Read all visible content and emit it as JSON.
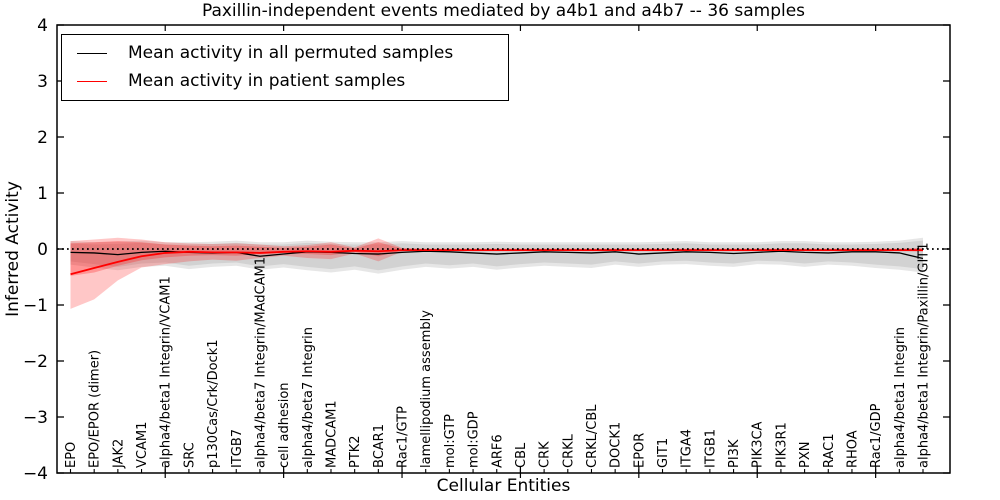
{
  "figure": {
    "title": "Paxillin-independent events mediated by a4b1 and a4b7 -- 36 samples",
    "xlabel": "Cellular Entities",
    "ylabel": "Inferred Activity"
  },
  "legend": {
    "position": "upper left",
    "entries": [
      {
        "label": "Mean activity in all permuted samples",
        "color": "#000000"
      },
      {
        "label": "Mean activity in patient samples",
        "color": "#ff0000"
      }
    ]
  },
  "chart_data": {
    "type": "line",
    "title": "Paxillin-independent events mediated by a4b1 and a4b7 -- 36 samples",
    "xlabel": "Cellular Entities",
    "ylabel": "Inferred Activity",
    "ylim": [
      -4,
      4
    ],
    "ytick_labels": [
      "4",
      "3",
      "2",
      "1",
      "0",
      "−1",
      "−2",
      "−3",
      "−4"
    ],
    "yticks": [
      4,
      3,
      2,
      1,
      0,
      -1,
      -2,
      -3,
      -4
    ],
    "grid": false,
    "legend_position": "upper left",
    "zero_line": {
      "style": "dotted",
      "color": "#000000",
      "y": 0
    },
    "categories": [
      "EPO",
      "EPO/EPOR (dimer)",
      "JAK2",
      "VCAM1",
      "alpha4/beta1 Integrin/VCAM1",
      "SRC",
      "p130Cas/Crk/Dock1",
      "ITGB7",
      "alpha4/beta7 Integrin/MAdCAM1",
      "cell adhesion",
      "alpha4/beta7 Integrin",
      "MADCAM1",
      "PTK2",
      "BCAR1",
      "Rac1/GTP",
      "lamellipodium assembly",
      "mol:GTP",
      "mol:GDP",
      "ARF6",
      "CBL",
      "CRK",
      "CRKL",
      "CRKL/CBL",
      "DOCK1",
      "EPOR",
      "GIT1",
      "ITGA4",
      "ITGB1",
      "PI3K",
      "PIK3CA",
      "PIK3R1",
      "PXN",
      "RAC1",
      "RHOA",
      "Rac1/GDP",
      "alpha4/beta1 Integrin",
      "alpha4/beta1 Integrin/Paxillin/GIT1"
    ],
    "series": [
      {
        "name": "Mean activity in all permuted samples",
        "color": "#000000",
        "values": [
          -0.06,
          -0.07,
          -0.1,
          -0.06,
          -0.04,
          -0.06,
          -0.07,
          -0.06,
          -0.13,
          -0.09,
          -0.05,
          -0.06,
          -0.08,
          -0.09,
          -0.06,
          -0.04,
          -0.05,
          -0.07,
          -0.09,
          -0.07,
          -0.05,
          -0.06,
          -0.07,
          -0.05,
          -0.09,
          -0.07,
          -0.05,
          -0.06,
          -0.08,
          -0.06,
          -0.04,
          -0.06,
          -0.07,
          -0.05,
          -0.05,
          -0.07,
          -0.17
        ]
      },
      {
        "name": "Mean activity in patient samples",
        "color": "#ff0000",
        "values": [
          -0.45,
          -0.34,
          -0.23,
          -0.13,
          -0.07,
          -0.05,
          -0.06,
          -0.06,
          -0.07,
          -0.05,
          -0.04,
          -0.05,
          -0.03,
          -0.04,
          -0.02,
          -0.02,
          -0.02,
          -0.02,
          -0.02,
          -0.02,
          -0.02,
          -0.02,
          -0.02,
          -0.02,
          -0.02,
          -0.02,
          -0.02,
          -0.02,
          -0.02,
          -0.02,
          -0.02,
          -0.02,
          -0.02,
          -0.02,
          -0.02,
          -0.02,
          -0.02
        ]
      }
    ],
    "bands": [
      {
        "name": "permuted-range",
        "color": "#8c8c8c",
        "opacity": 0.22,
        "hi": [
          0.14,
          0.12,
          0.13,
          0.15,
          0.12,
          0.12,
          0.13,
          0.15,
          0.12,
          0.12,
          0.15,
          0.13,
          0.12,
          0.12,
          0.14,
          0.12,
          0.12,
          0.12,
          0.13,
          0.12,
          0.12,
          0.12,
          0.12,
          0.12,
          0.12,
          0.13,
          0.14,
          0.12,
          0.12,
          0.12,
          0.14,
          0.14,
          0.12,
          0.12,
          0.13,
          0.15,
          0.2
        ],
        "lo": [
          -0.28,
          -0.33,
          -0.38,
          -0.32,
          -0.3,
          -0.36,
          -0.32,
          -0.3,
          -0.37,
          -0.33,
          -0.38,
          -0.42,
          -0.37,
          -0.44,
          -0.37,
          -0.32,
          -0.35,
          -0.32,
          -0.37,
          -0.33,
          -0.3,
          -0.32,
          -0.34,
          -0.28,
          -0.32,
          -0.28,
          -0.27,
          -0.3,
          -0.32,
          -0.27,
          -0.28,
          -0.32,
          -0.28,
          -0.3,
          -0.34,
          -0.37,
          -0.42
        ]
      },
      {
        "name": "permuted-core",
        "color": "#8c8c8c",
        "opacity": 0.22,
        "hi": [
          0.1,
          0.08,
          0.09,
          0.11,
          0.08,
          0.08,
          0.09,
          0.11,
          0.08,
          0.08,
          0.11,
          0.09,
          0.08,
          0.08,
          0.1,
          0.08,
          0.08,
          0.08,
          0.09,
          0.08,
          0.08,
          0.08,
          0.08,
          0.08,
          0.08,
          0.09,
          0.1,
          0.08,
          0.08,
          0.08,
          0.1,
          0.1,
          0.08,
          0.08,
          0.09,
          0.11,
          0.15
        ],
        "lo": [
          -0.22,
          -0.27,
          -0.32,
          -0.26,
          -0.24,
          -0.3,
          -0.26,
          -0.24,
          -0.31,
          -0.27,
          -0.32,
          -0.36,
          -0.31,
          -0.38,
          -0.31,
          -0.26,
          -0.29,
          -0.26,
          -0.31,
          -0.27,
          -0.24,
          -0.26,
          -0.28,
          -0.22,
          -0.26,
          -0.22,
          -0.21,
          -0.24,
          -0.26,
          -0.21,
          -0.22,
          -0.26,
          -0.22,
          -0.24,
          -0.28,
          -0.31,
          -0.36
        ]
      },
      {
        "name": "patient-range",
        "color": "#ff0000",
        "opacity": 0.22,
        "hi": [
          0.14,
          0.17,
          0.2,
          0.17,
          0.12,
          0.1,
          0.09,
          0.1,
          0.08,
          0.05,
          0.07,
          0.12,
          0.03,
          0.19,
          0.02,
          0.01,
          0.01,
          0.01,
          0.01,
          0.01,
          0.01,
          0.01,
          0.01,
          0.01,
          0.01,
          0.01,
          0.01,
          0.01,
          0.01,
          0.01,
          0.01,
          0.01,
          0.01,
          0.01,
          0.01,
          0.01,
          0.02
        ],
        "lo": [
          -1.07,
          -0.9,
          -0.56,
          -0.33,
          -0.27,
          -0.22,
          -0.19,
          -0.21,
          -0.16,
          -0.12,
          -0.16,
          -0.18,
          -0.08,
          -0.22,
          -0.05,
          -0.04,
          -0.04,
          -0.04,
          -0.04,
          -0.04,
          -0.04,
          -0.04,
          -0.04,
          -0.04,
          -0.04,
          -0.04,
          -0.04,
          -0.04,
          -0.04,
          -0.04,
          -0.04,
          -0.04,
          -0.04,
          -0.04,
          -0.04,
          -0.04,
          -0.05
        ],
        "note": "wide at left, narrows to line after Rac1/GTP"
      },
      {
        "name": "patient-core",
        "color": "#ff0000",
        "opacity": 0.25,
        "hi": [
          0.1,
          0.12,
          0.14,
          0.12,
          0.08,
          0.06,
          0.05,
          0.06,
          0.04,
          0.02,
          0.04,
          0.08,
          0.01,
          0.12,
          0.01,
          0,
          0,
          0,
          0,
          0,
          0,
          0,
          0,
          0,
          0,
          0,
          0,
          0,
          0,
          0,
          0,
          0,
          0,
          0,
          0,
          0,
          0.01
        ],
        "lo": [
          -0.48,
          -0.42,
          -0.3,
          -0.2,
          -0.15,
          -0.12,
          -0.11,
          -0.12,
          -0.09,
          -0.07,
          -0.09,
          -0.11,
          -0.05,
          -0.13,
          -0.03,
          -0.02,
          -0.02,
          -0.02,
          -0.02,
          -0.02,
          -0.02,
          -0.02,
          -0.02,
          -0.02,
          -0.02,
          -0.02,
          -0.02,
          -0.02,
          -0.02,
          -0.02,
          -0.02,
          -0.02,
          -0.02,
          -0.02,
          -0.02,
          -0.02,
          -0.03
        ]
      }
    ]
  }
}
